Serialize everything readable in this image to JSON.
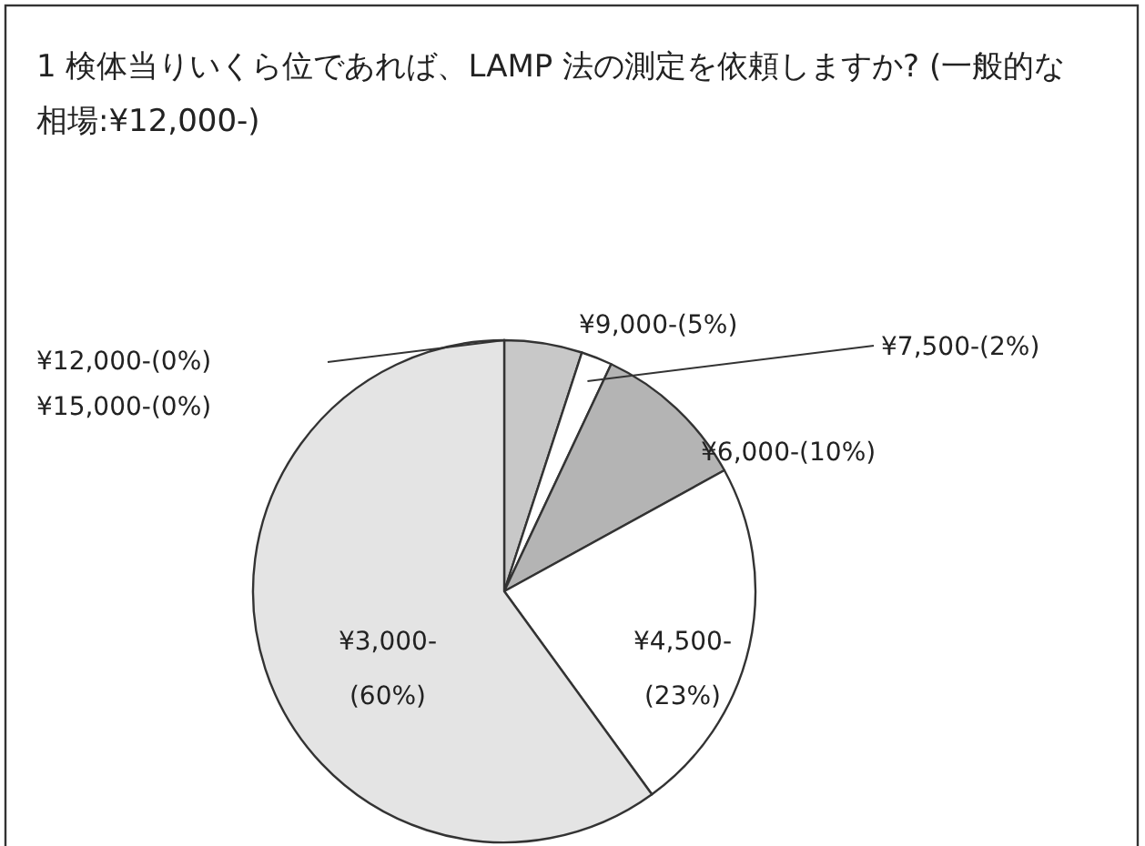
{
  "chart_data": {
    "type": "pie",
    "title": "1 検体当りいくら位であれば、LAMP 法の測定を依頼しますか? (一般的な相場:¥12,000-)",
    "categories": [
      "¥15,000-",
      "¥12,000-",
      "¥9,000-",
      "¥7,500-",
      "¥6,000-",
      "¥4,500-",
      "¥3,000-"
    ],
    "values": [
      0,
      0,
      5,
      2,
      10,
      23,
      60
    ],
    "value_labels": [
      "(0%)",
      "(0%)",
      "(5%)",
      "(2%)",
      "(10%)",
      "(23%)",
      "(60%)"
    ],
    "colors": [
      "#ffffff",
      "#ffffff",
      "#c8c8c8",
      "#ffffff",
      "#b4b4b4",
      "#ffffff",
      "#e4e4e4"
    ]
  }
}
